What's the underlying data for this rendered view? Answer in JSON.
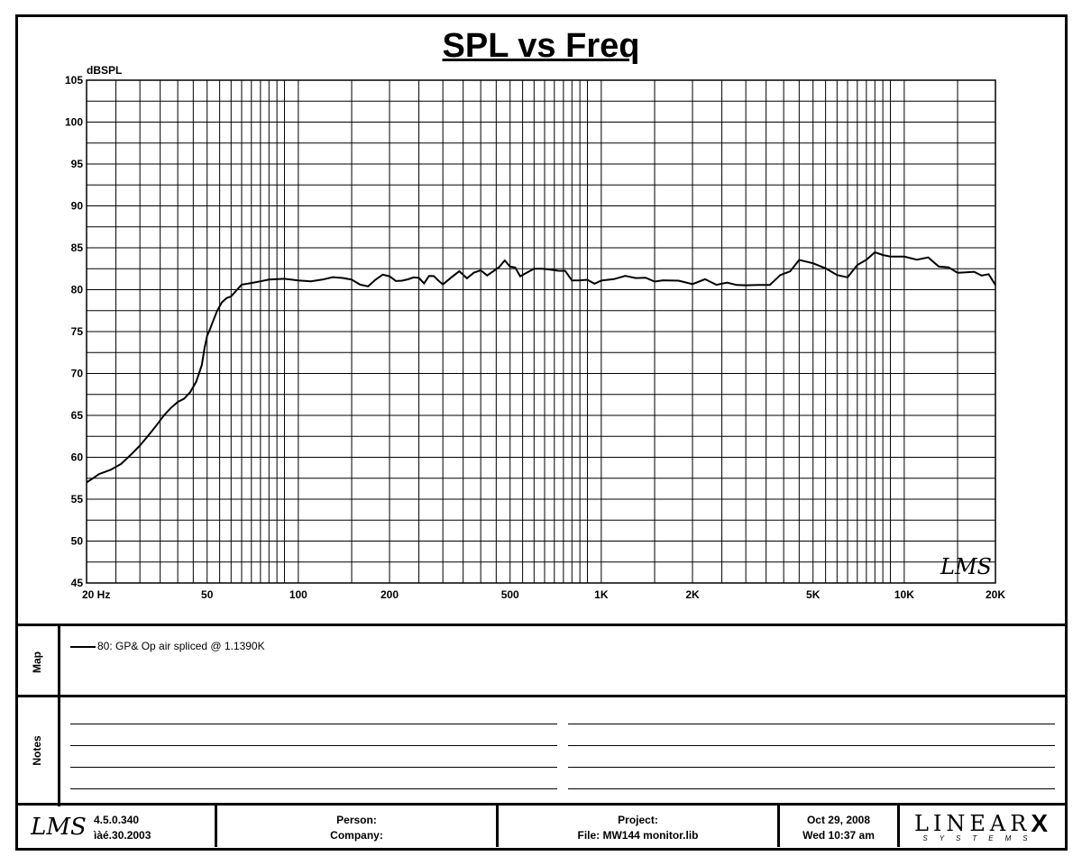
{
  "chart_data": {
    "type": "line",
    "title": "SPL vs Freq",
    "ylabel": "dBSPL",
    "xscale": "log",
    "xlim": [
      20,
      20000
    ],
    "ylim": [
      45,
      105
    ],
    "grid": true,
    "y_ticks": [
      "105",
      "100",
      "95",
      "90",
      "85",
      "80",
      "75",
      "70",
      "65",
      "60",
      "55",
      "50",
      "45"
    ],
    "x_ticks": [
      {
        "value": 20,
        "label": "20  Hz"
      },
      {
        "value": 50,
        "label": "50"
      },
      {
        "value": 100,
        "label": "100"
      },
      {
        "value": 200,
        "label": "200"
      },
      {
        "value": 500,
        "label": "500"
      },
      {
        "value": 1000,
        "label": "1K"
      },
      {
        "value": 2000,
        "label": "2K"
      },
      {
        "value": 5000,
        "label": "5K"
      },
      {
        "value": 10000,
        "label": "10K"
      },
      {
        "value": 20000,
        "label": "20K"
      }
    ],
    "series": [
      {
        "name": "80: GP& Op air spliced @   1.1390K",
        "color": "#000000",
        "x": [
          20,
          21,
          22,
          24,
          26,
          28,
          30,
          32,
          34,
          36,
          38,
          40,
          42,
          44,
          46,
          47,
          48,
          49,
          50,
          51,
          52,
          54,
          56,
          58,
          60,
          65,
          70,
          75,
          80,
          90,
          100,
          110,
          120,
          130,
          140,
          150,
          160,
          170,
          180,
          190,
          200,
          210,
          220,
          230,
          240,
          250,
          260,
          270,
          280,
          290,
          300,
          320,
          340,
          360,
          380,
          400,
          420,
          440,
          460,
          480,
          500,
          520,
          540,
          560,
          600,
          640,
          680,
          720,
          760,
          800,
          850,
          900,
          950,
          1000,
          1100,
          1200,
          1300,
          1400,
          1500,
          1600,
          1800,
          2000,
          2200,
          2400,
          2600,
          2800,
          3000,
          3300,
          3600,
          3900,
          4200,
          4500,
          5000,
          5500,
          6000,
          6500,
          7000,
          7500,
          8000,
          8500,
          9000,
          10000,
          11000,
          12000,
          13000,
          14000,
          15000,
          16000,
          17000,
          18000,
          19000,
          20000
        ],
        "y": [
          57,
          57.5,
          58,
          58.5,
          59.2,
          60.3,
          61.4,
          62.6,
          63.8,
          65,
          65.9,
          66.6,
          67,
          67.8,
          69,
          70,
          71,
          73,
          74.5,
          75.2,
          76,
          77.5,
          78.5,
          79,
          79.2,
          80.6,
          80.8,
          81,
          81.2,
          81.3,
          81.1,
          81,
          81.2,
          81.5,
          81.4,
          81.2,
          80.6,
          80.4,
          81.2,
          81.8,
          81.6,
          81.2,
          81,
          81.2,
          81.6,
          81.2,
          81,
          81.4,
          81.8,
          81,
          80.6,
          81.6,
          82,
          81.6,
          81.8,
          82.5,
          81.6,
          82.2,
          82.8,
          83.3,
          83,
          82.4,
          81.8,
          81.8,
          82.5,
          82.6,
          82.2,
          82.5,
          82,
          81.3,
          81,
          81.2,
          80.8,
          80.9,
          81.5,
          81.4,
          81.6,
          81.3,
          81,
          81.2,
          80.9,
          80.9,
          81,
          80.8,
          80.7,
          80.6,
          80.6,
          80.4,
          80.8,
          81.5,
          82.4,
          83.4,
          83.2,
          82.6,
          81.6,
          81.7,
          82.7,
          83.8,
          84.3,
          84.2,
          84,
          83.8,
          83.8,
          83.6,
          83,
          82.5,
          82.1,
          82.1,
          82,
          81.9,
          81.6,
          80.8
        ]
      }
    ]
  },
  "watermark": "LMS",
  "map": {
    "label": "Map",
    "entry": "80: GP& Op air spliced @   1.1390K"
  },
  "notes": {
    "label": "Notes"
  },
  "footer": {
    "logo": "LMS",
    "version": "4.5.0.340",
    "build_date": "ìàé.30.2003",
    "person_label": "Person:",
    "company_label": "Company:",
    "project_label": "Project:",
    "file": "File: MW144 monitor.lib",
    "date": "Oct 29, 2008",
    "time": "Wed 10:37 am",
    "brand": "LINEAR",
    "brand_x": "X",
    "brand_sub": "SYSTEMS"
  }
}
